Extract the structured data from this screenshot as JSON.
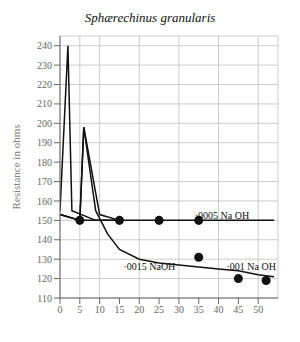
{
  "chart_data": {
    "type": "line",
    "title": "Sphærechinus granularis",
    "ylabel": "Resistance in ohms",
    "xlim": [
      0,
      55
    ],
    "ylim": [
      110,
      245
    ],
    "xticks": [
      0,
      5,
      10,
      15,
      20,
      25,
      30,
      35,
      40,
      45,
      50
    ],
    "yticks": [
      110,
      120,
      130,
      140,
      150,
      160,
      170,
      180,
      190,
      200,
      210,
      220,
      230,
      240
    ],
    "grid": true,
    "series": [
      {
        "type": "line",
        "color": "#111111",
        "x": [
          0,
          2,
          3,
          9,
          15
        ],
        "values": [
          155,
          240,
          155,
          150,
          150
        ]
      },
      {
        "type": "line",
        "color": "#111111",
        "x": [
          0,
          5,
          6,
          10,
          15
        ],
        "values": [
          153,
          150,
          198,
          153,
          150
        ]
      },
      {
        "type": "line",
        "color": "#111111",
        "x": [
          0,
          5,
          10,
          15,
          20,
          25,
          30,
          35,
          40,
          45,
          50,
          54
        ],
        "values": [
          153,
          150,
          150,
          150,
          150,
          150,
          150,
          150,
          150,
          150,
          150,
          150
        ]
      },
      {
        "type": "line",
        "color": "#111111",
        "x": [
          0,
          5,
          6,
          9,
          12,
          15,
          20,
          25,
          30,
          35,
          40,
          45,
          50,
          54
        ],
        "values": [
          153,
          150,
          198,
          155,
          143,
          135,
          130,
          128,
          127,
          126,
          125,
          124,
          122,
          121
        ]
      },
      {
        "type": "scatter",
        "marker": "o",
        "color": "#111111",
        "x": [
          5,
          15,
          25,
          35
        ],
        "values": [
          150,
          150,
          150,
          150
        ]
      },
      {
        "type": "scatter",
        "marker": "o",
        "color": "#111111",
        "x": [
          35,
          45,
          52
        ],
        "values": [
          131,
          120,
          119
        ]
      }
    ],
    "annotations": [
      {
        "text": "·0005 Na OH",
        "x": 34,
        "y": 152.5
      },
      {
        "text": "·0015 NaOH",
        "x": 16,
        "y": 126
      },
      {
        "text": "·001 Na OH",
        "x": 42,
        "y": 126
      }
    ]
  }
}
